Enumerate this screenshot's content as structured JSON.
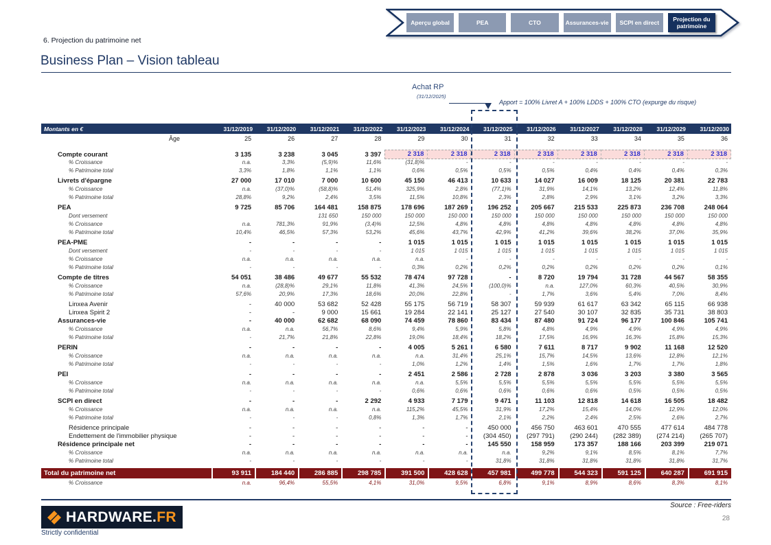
{
  "header": {
    "section_label": "6. Projection du patrimoine net",
    "title": "Business Plan – Vision tableau"
  },
  "nav": {
    "tabs": [
      {
        "label": "Aperçu global",
        "active": false
      },
      {
        "label": "PEA",
        "active": false
      },
      {
        "label": "CTO",
        "active": false
      },
      {
        "label": "Assurances-vie",
        "active": false
      },
      {
        "label": "SCPI en direct",
        "active": false
      },
      {
        "label": "Projection du patrimoine",
        "active": true
      }
    ]
  },
  "annotation": {
    "title": "Achat RP",
    "date": "(31/12/2025)",
    "note": "Apport = 100% Livret A + 100% LDDS + 100% CTO (expurge du risque)"
  },
  "table": {
    "corner_label": "Montants en €",
    "age_label": "Âge",
    "columns": [
      "31/12/2019",
      "31/12/2020",
      "31/12/2021",
      "31/12/2022",
      "31/12/2023",
      "31/12/2024",
      "31/12/2025",
      "31/12/2026",
      "31/12/2027",
      "31/12/2028",
      "31/12/2029",
      "31/12/2030"
    ],
    "ages": [
      "25",
      "26",
      "27",
      "28",
      "29",
      "30",
      "31",
      "32",
      "33",
      "34",
      "35",
      "36"
    ],
    "highlight_column": "31/12/2025",
    "rows": [
      {
        "label": "Compte courant",
        "style": "main",
        "pink": [
          4,
          11
        ],
        "values": [
          "3 135",
          "3 238",
          "3 045",
          "3 397",
          "2 318",
          "2 318",
          "2 318",
          "2 318",
          "2 318",
          "2 318",
          "2 318",
          "2 318"
        ]
      },
      {
        "label": "% Croissance",
        "style": "sub",
        "values": [
          "n.a.",
          "3,3%",
          "(5,9)%",
          "11,6%",
          "(31,8)%",
          "-",
          "-",
          "-",
          "-",
          "-",
          "-",
          "-"
        ]
      },
      {
        "label": "% Patrimoine total",
        "style": "sub",
        "values": [
          "3,3%",
          "1,8%",
          "1,1%",
          "1,1%",
          "0,6%",
          "0,5%",
          "0,5%",
          "0,5%",
          "0,4%",
          "0,4%",
          "0,4%",
          "0,3%"
        ]
      },
      {
        "label": "Livrets d'épargne",
        "style": "main",
        "group_start": true,
        "values": [
          "27 000",
          "17 010",
          "7 000",
          "10 600",
          "45 150",
          "46 413",
          "10 633",
          "14 027",
          "16 009",
          "18 125",
          "20 381",
          "22 783"
        ]
      },
      {
        "label": "% Croissance",
        "style": "sub",
        "values": [
          "n.a.",
          "(37,0)%",
          "(58,8)%",
          "51,4%",
          "325,9%",
          "2,8%",
          "(77,1)%",
          "31,9%",
          "14,1%",
          "13,2%",
          "12,4%",
          "11,8%"
        ]
      },
      {
        "label": "% Patrimoine total",
        "style": "sub",
        "values": [
          "28,8%",
          "9,2%",
          "2,4%",
          "3,5%",
          "11,5%",
          "10,8%",
          "2,3%",
          "2,8%",
          "2,9%",
          "3,1%",
          "3,2%",
          "3,3%"
        ]
      },
      {
        "label": "PEA",
        "style": "main",
        "group_start": true,
        "values": [
          "9 725",
          "85 706",
          "164 481",
          "158 875",
          "178 696",
          "187 269",
          "196 252",
          "205 667",
          "215 533",
          "225 873",
          "236 708",
          "248 064"
        ]
      },
      {
        "label": "Dont versement",
        "style": "sub",
        "values": [
          "",
          "",
          "131 650",
          "150 000",
          "150 000",
          "150 000",
          "150 000",
          "150 000",
          "150 000",
          "150 000",
          "150 000",
          "150 000"
        ]
      },
      {
        "label": "% Croissance",
        "style": "sub",
        "values": [
          "n.a.",
          "781,3%",
          "91,9%",
          "(3,4)%",
          "12,5%",
          "4,8%",
          "4,8%",
          "4,8%",
          "4,8%",
          "4,8%",
          "4,8%",
          "4,8%"
        ]
      },
      {
        "label": "% Patrimoine total",
        "style": "sub",
        "values": [
          "10,4%",
          "46,5%",
          "57,3%",
          "53,2%",
          "45,6%",
          "43,7%",
          "42,9%",
          "41,2%",
          "39,6%",
          "38,2%",
          "37,0%",
          "35,9%"
        ]
      },
      {
        "label": "PEA-PME",
        "style": "main",
        "group_start": true,
        "values": [
          "-",
          "-",
          "-",
          "-",
          "1 015",
          "1 015",
          "1 015",
          "1 015",
          "1 015",
          "1 015",
          "1 015",
          "1 015"
        ]
      },
      {
        "label": "Dont versement",
        "style": "sub",
        "values": [
          "-",
          "-",
          "-",
          "-",
          "1 015",
          "1 015",
          "1 015",
          "1 015",
          "1 015",
          "1 015",
          "1 015",
          "1 015"
        ]
      },
      {
        "label": "% Croissance",
        "style": "sub",
        "values": [
          "n.a.",
          "n.a.",
          "n.a.",
          "n.a.",
          "n.a.",
          "-",
          "-",
          "-",
          "-",
          "-",
          "-",
          "-"
        ]
      },
      {
        "label": "% Patrimoine total",
        "style": "sub",
        "values": [
          "-",
          "-",
          "-",
          "-",
          "0,3%",
          "0,2%",
          "0,2%",
          "0,2%",
          "0,2%",
          "0,2%",
          "0,2%",
          "0,1%"
        ]
      },
      {
        "label": "Compte de titres",
        "style": "main",
        "group_start": true,
        "values": [
          "54 051",
          "38 486",
          "49 677",
          "55 532",
          "78 474",
          "97 728",
          "-",
          "8 720",
          "19 794",
          "31 728",
          "44 567",
          "58 355"
        ]
      },
      {
        "label": "% Croissance",
        "style": "sub",
        "values": [
          "n.a.",
          "(28,8)%",
          "29,1%",
          "11,8%",
          "41,3%",
          "24,5%",
          "(100,0)%",
          "n.a.",
          "127,0%",
          "60,3%",
          "40,5%",
          "30,9%"
        ]
      },
      {
        "label": "% Patrimoine total",
        "style": "sub",
        "values": [
          "57,6%",
          "20,9%",
          "17,3%",
          "18,6%",
          "20,0%",
          "22,8%",
          "-",
          "1,7%",
          "3,6%",
          "5,4%",
          "7,0%",
          "8,4%"
        ]
      },
      {
        "label": "Linxea Avenir",
        "style": "item",
        "group_start": true,
        "values": [
          "-",
          "40 000",
          "53 682",
          "52 428",
          "55 175",
          "56 719",
          "58 307",
          "59 939",
          "61 617",
          "63 342",
          "65 115",
          "66 938"
        ]
      },
      {
        "label": "Linxea Spirit 2",
        "style": "item",
        "values": [
          "-",
          "-",
          "9 000",
          "15 661",
          "19 284",
          "22 141",
          "25 127",
          "27 540",
          "30 107",
          "32 835",
          "35 731",
          "38 803"
        ]
      },
      {
        "label": "Assurances-vie",
        "style": "main",
        "values": [
          "-",
          "40 000",
          "62 682",
          "68 090",
          "74 459",
          "78 860",
          "83 434",
          "87 480",
          "91 724",
          "96 177",
          "100 846",
          "105 741"
        ]
      },
      {
        "label": "% Croissance",
        "style": "sub",
        "values": [
          "n.a.",
          "n.a.",
          "56,7%",
          "8,6%",
          "9,4%",
          "5,9%",
          "5,8%",
          "4,8%",
          "4,9%",
          "4,9%",
          "4,9%",
          "4,9%"
        ]
      },
      {
        "label": "% Patrimoine total",
        "style": "sub",
        "values": [
          "-",
          "21,7%",
          "21,8%",
          "22,8%",
          "19,0%",
          "18,4%",
          "18,2%",
          "17,5%",
          "16,9%",
          "16,3%",
          "15,8%",
          "15,3%"
        ]
      },
      {
        "label": "PERIN",
        "style": "main",
        "group_start": true,
        "values": [
          "-",
          "-",
          "-",
          "-",
          "4 005",
          "5 261",
          "6 580",
          "7 611",
          "8 717",
          "9 902",
          "11 168",
          "12 520"
        ]
      },
      {
        "label": "% Croissance",
        "style": "sub",
        "values": [
          "n.a.",
          "n.a.",
          "n.a.",
          "n.a.",
          "n.a.",
          "31,4%",
          "25,1%",
          "15,7%",
          "14,5%",
          "13,6%",
          "12,8%",
          "12,1%"
        ]
      },
      {
        "label": "% Patrimoine total",
        "style": "sub",
        "values": [
          "-",
          "-",
          "-",
          "-",
          "1,0%",
          "1,2%",
          "1,4%",
          "1,5%",
          "1,6%",
          "1,7%",
          "1,7%",
          "1,8%"
        ]
      },
      {
        "label": "PEI",
        "style": "main",
        "group_start": true,
        "values": [
          "-",
          "-",
          "-",
          "-",
          "2 451",
          "2 586",
          "2 728",
          "2 878",
          "3 036",
          "3 203",
          "3 380",
          "3 565"
        ]
      },
      {
        "label": "% Croissance",
        "style": "sub",
        "values": [
          "n.a.",
          "n.a.",
          "n.a.",
          "n.a.",
          "n.a.",
          "5,5%",
          "5,5%",
          "5,5%",
          "5,5%",
          "5,5%",
          "5,5%",
          "5,5%"
        ]
      },
      {
        "label": "% Patrimoine total",
        "style": "sub",
        "values": [
          "-",
          "-",
          "-",
          "-",
          "0,6%",
          "0,6%",
          "0,6%",
          "0,6%",
          "0,6%",
          "0,5%",
          "0,5%",
          "0,5%"
        ]
      },
      {
        "label": "SCPI en direct",
        "style": "main",
        "group_start": true,
        "values": [
          "-",
          "-",
          "-",
          "2 292",
          "4 933",
          "7 179",
          "9 471",
          "11 103",
          "12 818",
          "14 618",
          "16 505",
          "18 482"
        ]
      },
      {
        "label": "% Croissance",
        "style": "sub",
        "values": [
          "n.a.",
          "n.a.",
          "n.a.",
          "n.a.",
          "115,2%",
          "45,5%",
          "31,9%",
          "17,2%",
          "15,4%",
          "14,0%",
          "12,9%",
          "12,0%"
        ]
      },
      {
        "label": "% Patrimoine total",
        "style": "sub",
        "values": [
          "-",
          "-",
          "-",
          "0,8%",
          "1,3%",
          "1,7%",
          "2,1%",
          "2,2%",
          "2,4%",
          "2,5%",
          "2,6%",
          "2,7%"
        ]
      },
      {
        "label": "Résidence principale",
        "style": "item",
        "group_start": true,
        "values": [
          "-",
          "-",
          "-",
          "-",
          "-",
          "-",
          "450 000",
          "456 750",
          "463 601",
          "470 555",
          "477 614",
          "484 778"
        ]
      },
      {
        "label": "Endettement de l'immobilier physique",
        "style": "item",
        "values": [
          "-",
          "-",
          "-",
          "-",
          "-",
          "-",
          "(304 450)",
          "(297 791)",
          "(290 244)",
          "(282 389)",
          "(274 214)",
          "(265 707)"
        ]
      },
      {
        "label": "Résidence principale net",
        "style": "main",
        "values": [
          "-",
          "-",
          "-",
          "-",
          "-",
          "-",
          "145 550",
          "158 959",
          "173 357",
          "188 166",
          "203 399",
          "219 071"
        ]
      },
      {
        "label": "% Croissance",
        "style": "sub",
        "values": [
          "n.a.",
          "n.a.",
          "n.a.",
          "n.a.",
          "n.a.",
          "n.a.",
          "n.a.",
          "9,2%",
          "9,1%",
          "8,5%",
          "8,1%",
          "7,7%"
        ]
      },
      {
        "label": "% Patrimoine total",
        "style": "sub",
        "values": [
          "-",
          "-",
          "-",
          "-",
          "-",
          "-",
          "31,8%",
          "31,8%",
          "31,8%",
          "31,8%",
          "31,8%",
          "31,7%"
        ]
      },
      {
        "label": "Total du patrimoine net",
        "style": "total",
        "values": [
          "93 911",
          "184 440",
          "286 885",
          "298 785",
          "391 500",
          "428 628",
          "457 981",
          "499 778",
          "544 323",
          "591 125",
          "640 287",
          "691 915"
        ]
      },
      {
        "label": "% Croissance",
        "style": "totalsub",
        "values": [
          "n.a.",
          "96,4%",
          "55,5%",
          "4,1%",
          "31,0%",
          "9,5%",
          "6,8%",
          "9,1%",
          "8,9%",
          "8,6%",
          "8,3%",
          "8,1%"
        ]
      }
    ]
  },
  "footer": {
    "logo_text": "HARDWARE.",
    "logo_suffix": "FR",
    "source": "Source : Free-riders",
    "page_number": "28",
    "confidential": "Strictly confidential"
  },
  "colors": {
    "navy": "#1F3864",
    "maroon": "#7F1416",
    "pink_highlight": "#FBDCDB",
    "highlight_value_blue": "#3333CC",
    "tab_gray": "#8C9AB2",
    "logo_orange": "#F7941D"
  }
}
